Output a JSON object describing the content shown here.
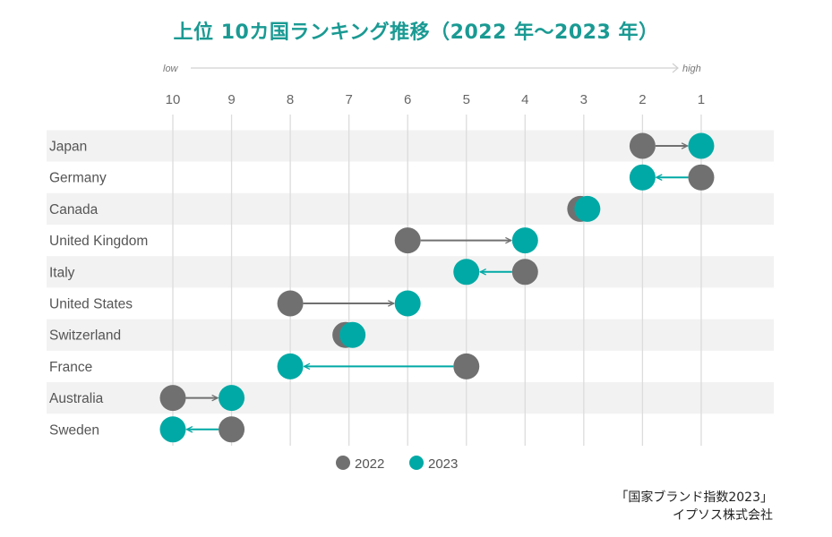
{
  "title": "上位 10カ国ランキング推移（2022 年～2023 年）",
  "axis": {
    "low_label": "low",
    "high_label": "high"
  },
  "legend": {
    "items": [
      {
        "label": "2022",
        "color": "#717070"
      },
      {
        "label": "2023",
        "color": "#00a9a5"
      }
    ]
  },
  "source": {
    "line1": "「国家ブランド指数2023」",
    "line2": "イプソス株式会社"
  },
  "colors": {
    "title": "#1a9a93",
    "y2022": "#717070",
    "y2023": "#00a9a5",
    "band": "#f2f2f2",
    "grid": "#dcdcdc",
    "text": "#555555"
  },
  "chart_data": {
    "type": "scatter",
    "subtype": "dumbbell",
    "title": "上位 10カ国ランキング推移（2022 年～2023 年）",
    "xlabel": "Rank (low → high)",
    "ylabel": "",
    "x_ticks": [
      10,
      9,
      8,
      7,
      6,
      5,
      4,
      3,
      2,
      1
    ],
    "xlim": [
      10,
      1
    ],
    "categories": [
      "Japan",
      "Germany",
      "Canada",
      "United Kingdom",
      "Italy",
      "United States",
      "Switzerland",
      "France",
      "Australia",
      "Sweden"
    ],
    "series": [
      {
        "name": "2022",
        "values": [
          2,
          1,
          3,
          6,
          4,
          8,
          7,
          5,
          10,
          9
        ]
      },
      {
        "name": "2023",
        "values": [
          1,
          2,
          3,
          4,
          5,
          6,
          7,
          8,
          9,
          10
        ]
      }
    ],
    "grid": true,
    "legend_position": "bottom"
  }
}
